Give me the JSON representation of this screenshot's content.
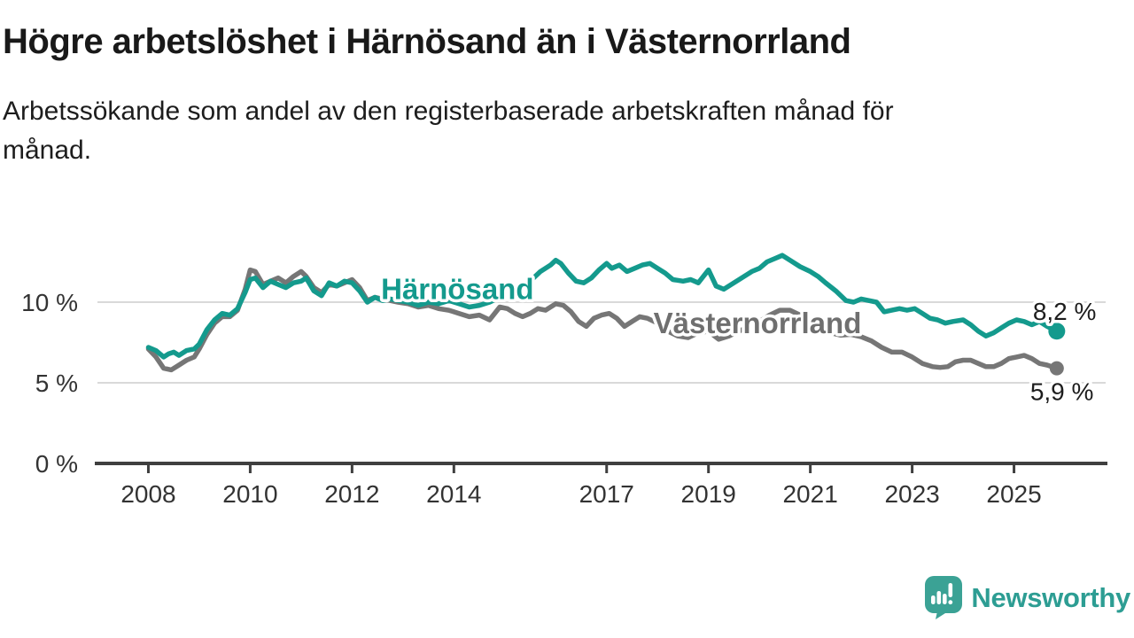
{
  "header": {
    "title": "Högre arbetslöshet i Härnösand än i Västernorrland",
    "subtitle": "Arbetssökande som andel av den registerbaserade arbetskraften månad för månad."
  },
  "footer": {
    "brand": "Newsworthy",
    "logo_icon": "bar-chart-speech-bubble-icon",
    "brand_color": "#2d9d93",
    "icon_color": "#3ba295"
  },
  "chart_data": {
    "type": "line",
    "title": "Högre arbetslöshet i Härnösand än i Västernorrland",
    "subtitle": "Arbetssökande som andel av den registerbaserade arbetskraften månad för månad.",
    "xlabel": "",
    "ylabel": "",
    "grid": "horizontal",
    "legend_position": "inline-labels",
    "x_axis": {
      "range": [
        2007.0,
        2026.8
      ],
      "ticks": [
        2008,
        2010,
        2012,
        2014,
        2017,
        2019,
        2021,
        2023,
        2025
      ],
      "tick_labels": [
        "2008",
        "2010",
        "2012",
        "2014",
        "2017",
        "2019",
        "2021",
        "2023",
        "2025"
      ],
      "axis_color": "#3f3f3f",
      "label_color": "#333333"
    },
    "y_axis": {
      "range": [
        0,
        13.6
      ],
      "ticks": [
        0,
        5,
        10
      ],
      "tick_labels": [
        "0 %",
        "5 %",
        "10 %"
      ],
      "gridlines": [
        5,
        10
      ],
      "grid_color": "#d9d9d9",
      "label_color": "#333333"
    },
    "series": [
      {
        "name": "Västernorrland",
        "color": "#767676",
        "label_color": "#6f6f6f",
        "end_label": "5,9 %",
        "end_value": 5.9,
        "name_label_anchor": {
          "x_year": 2017.92,
          "y_pct": 8.08
        },
        "points": [
          [
            2008.0,
            7.1
          ],
          [
            2008.15,
            6.6
          ],
          [
            2008.3,
            5.9
          ],
          [
            2008.45,
            5.8
          ],
          [
            2008.6,
            6.1
          ],
          [
            2008.75,
            6.4
          ],
          [
            2008.9,
            6.6
          ],
          [
            2009.0,
            7.1
          ],
          [
            2009.15,
            8.0
          ],
          [
            2009.3,
            8.7
          ],
          [
            2009.45,
            9.1
          ],
          [
            2009.6,
            9.1
          ],
          [
            2009.75,
            9.5
          ],
          [
            2009.9,
            10.8
          ],
          [
            2010.0,
            12.0
          ],
          [
            2010.1,
            11.9
          ],
          [
            2010.25,
            11.1
          ],
          [
            2010.4,
            11.3
          ],
          [
            2010.55,
            11.5
          ],
          [
            2010.7,
            11.2
          ],
          [
            2010.85,
            11.6
          ],
          [
            2011.0,
            11.9
          ],
          [
            2011.1,
            11.6
          ],
          [
            2011.25,
            10.9
          ],
          [
            2011.4,
            10.6
          ],
          [
            2011.55,
            11.1
          ],
          [
            2011.7,
            11.0
          ],
          [
            2011.85,
            11.2
          ],
          [
            2012.0,
            11.4
          ],
          [
            2012.15,
            10.9
          ],
          [
            2012.3,
            10.1
          ],
          [
            2012.45,
            10.3
          ],
          [
            2012.6,
            10.2
          ],
          [
            2012.75,
            10.1
          ],
          [
            2012.9,
            10.0
          ],
          [
            2013.1,
            9.9
          ],
          [
            2013.3,
            9.7
          ],
          [
            2013.5,
            9.8
          ],
          [
            2013.7,
            9.6
          ],
          [
            2013.9,
            9.5
          ],
          [
            2014.1,
            9.3
          ],
          [
            2014.3,
            9.1
          ],
          [
            2014.5,
            9.2
          ],
          [
            2014.7,
            8.9
          ],
          [
            2014.9,
            9.7
          ],
          [
            2015.05,
            9.6
          ],
          [
            2015.2,
            9.3
          ],
          [
            2015.35,
            9.1
          ],
          [
            2015.5,
            9.3
          ],
          [
            2015.65,
            9.6
          ],
          [
            2015.8,
            9.5
          ],
          [
            2016.0,
            9.9
          ],
          [
            2016.15,
            9.8
          ],
          [
            2016.3,
            9.4
          ],
          [
            2016.45,
            8.8
          ],
          [
            2016.6,
            8.5
          ],
          [
            2016.75,
            9.0
          ],
          [
            2016.9,
            9.2
          ],
          [
            2017.05,
            9.3
          ],
          [
            2017.2,
            9.0
          ],
          [
            2017.35,
            8.5
          ],
          [
            2017.5,
            8.8
          ],
          [
            2017.65,
            9.1
          ],
          [
            2017.8,
            9.0
          ],
          [
            2018.0,
            8.7
          ],
          [
            2018.2,
            8.2
          ],
          [
            2018.4,
            7.9
          ],
          [
            2018.6,
            7.8
          ],
          [
            2018.8,
            8.1
          ],
          [
            2019.0,
            8.2
          ],
          [
            2019.2,
            7.7
          ],
          [
            2019.4,
            7.9
          ],
          [
            2019.6,
            8.2
          ],
          [
            2019.8,
            8.5
          ],
          [
            2020.0,
            8.8
          ],
          [
            2020.2,
            9.2
          ],
          [
            2020.4,
            9.5
          ],
          [
            2020.6,
            9.5
          ],
          [
            2020.8,
            9.2
          ],
          [
            2021.0,
            8.9
          ],
          [
            2021.2,
            8.5
          ],
          [
            2021.4,
            8.1
          ],
          [
            2021.6,
            7.95
          ],
          [
            2021.8,
            8.0
          ],
          [
            2022.0,
            7.85
          ],
          [
            2022.2,
            7.6
          ],
          [
            2022.4,
            7.2
          ],
          [
            2022.6,
            6.9
          ],
          [
            2022.8,
            6.9
          ],
          [
            2023.0,
            6.6
          ],
          [
            2023.2,
            6.2
          ],
          [
            2023.4,
            6.0
          ],
          [
            2023.55,
            5.95
          ],
          [
            2023.7,
            6.0
          ],
          [
            2023.85,
            6.3
          ],
          [
            2024.0,
            6.4
          ],
          [
            2024.15,
            6.4
          ],
          [
            2024.3,
            6.2
          ],
          [
            2024.45,
            6.0
          ],
          [
            2024.6,
            6.0
          ],
          [
            2024.75,
            6.2
          ],
          [
            2024.9,
            6.5
          ],
          [
            2025.05,
            6.6
          ],
          [
            2025.2,
            6.7
          ],
          [
            2025.35,
            6.5
          ],
          [
            2025.5,
            6.2
          ],
          [
            2025.65,
            6.1
          ],
          [
            2025.84,
            5.9
          ]
        ]
      },
      {
        "name": "Härnösand",
        "color": "#149a8d",
        "label_color": "#149a8d",
        "end_label": "8,2 %",
        "end_value": 8.2,
        "name_label_anchor": {
          "x_year": 2012.57,
          "y_pct": 10.2
        },
        "points": [
          [
            2008.0,
            7.2
          ],
          [
            2008.15,
            7.0
          ],
          [
            2008.3,
            6.6
          ],
          [
            2008.4,
            6.8
          ],
          [
            2008.5,
            6.9
          ],
          [
            2008.6,
            6.7
          ],
          [
            2008.75,
            7.0
          ],
          [
            2008.9,
            7.1
          ],
          [
            2009.0,
            7.4
          ],
          [
            2009.15,
            8.3
          ],
          [
            2009.3,
            8.9
          ],
          [
            2009.45,
            9.3
          ],
          [
            2009.6,
            9.2
          ],
          [
            2009.75,
            9.6
          ],
          [
            2009.9,
            10.6
          ],
          [
            2010.0,
            11.4
          ],
          [
            2010.1,
            11.5
          ],
          [
            2010.25,
            10.9
          ],
          [
            2010.4,
            11.3
          ],
          [
            2010.55,
            11.1
          ],
          [
            2010.7,
            10.9
          ],
          [
            2010.85,
            11.2
          ],
          [
            2011.0,
            11.3
          ],
          [
            2011.1,
            11.5
          ],
          [
            2011.25,
            10.7
          ],
          [
            2011.4,
            10.4
          ],
          [
            2011.55,
            11.2
          ],
          [
            2011.7,
            11.0
          ],
          [
            2011.85,
            11.3
          ],
          [
            2012.0,
            11.2
          ],
          [
            2012.15,
            10.7
          ],
          [
            2012.3,
            10.0
          ],
          [
            2012.45,
            10.3
          ],
          [
            2012.6,
            10.1
          ],
          [
            2012.75,
            10.2
          ],
          [
            2012.9,
            10.1
          ],
          [
            2013.1,
            10.0
          ],
          [
            2013.3,
            9.8
          ],
          [
            2013.5,
            10.0
          ],
          [
            2013.7,
            9.9
          ],
          [
            2013.9,
            10.1
          ],
          [
            2014.1,
            9.9
          ],
          [
            2014.3,
            9.7
          ],
          [
            2014.5,
            9.8
          ],
          [
            2014.7,
            10.0
          ],
          [
            2014.9,
            10.3
          ],
          [
            2015.1,
            10.7
          ],
          [
            2015.3,
            11.0
          ],
          [
            2015.5,
            11.3
          ],
          [
            2015.7,
            11.9
          ],
          [
            2015.9,
            12.3
          ],
          [
            2016.0,
            12.6
          ],
          [
            2016.1,
            12.4
          ],
          [
            2016.25,
            11.8
          ],
          [
            2016.4,
            11.3
          ],
          [
            2016.55,
            11.2
          ],
          [
            2016.7,
            11.5
          ],
          [
            2016.85,
            12.0
          ],
          [
            2017.0,
            12.4
          ],
          [
            2017.1,
            12.1
          ],
          [
            2017.25,
            12.3
          ],
          [
            2017.4,
            11.9
          ],
          [
            2017.55,
            12.1
          ],
          [
            2017.7,
            12.3
          ],
          [
            2017.85,
            12.4
          ],
          [
            2018.0,
            12.1
          ],
          [
            2018.15,
            11.8
          ],
          [
            2018.3,
            11.4
          ],
          [
            2018.5,
            11.3
          ],
          [
            2018.65,
            11.4
          ],
          [
            2018.8,
            11.2
          ],
          [
            2019.0,
            12.0
          ],
          [
            2019.15,
            11.0
          ],
          [
            2019.3,
            10.8
          ],
          [
            2019.5,
            11.2
          ],
          [
            2019.7,
            11.6
          ],
          [
            2019.85,
            11.9
          ],
          [
            2020.0,
            12.1
          ],
          [
            2020.15,
            12.5
          ],
          [
            2020.3,
            12.7
          ],
          [
            2020.45,
            12.9
          ],
          [
            2020.6,
            12.6
          ],
          [
            2020.8,
            12.2
          ],
          [
            2021.0,
            11.9
          ],
          [
            2021.15,
            11.6
          ],
          [
            2021.3,
            11.2
          ],
          [
            2021.5,
            10.7
          ],
          [
            2021.7,
            10.1
          ],
          [
            2021.85,
            10.0
          ],
          [
            2022.0,
            10.2
          ],
          [
            2022.15,
            10.1
          ],
          [
            2022.3,
            10.0
          ],
          [
            2022.45,
            9.4
          ],
          [
            2022.6,
            9.5
          ],
          [
            2022.75,
            9.6
          ],
          [
            2022.9,
            9.5
          ],
          [
            2023.05,
            9.6
          ],
          [
            2023.2,
            9.3
          ],
          [
            2023.35,
            9.0
          ],
          [
            2023.5,
            8.9
          ],
          [
            2023.65,
            8.7
          ],
          [
            2023.8,
            8.8
          ],
          [
            2024.0,
            8.9
          ],
          [
            2024.15,
            8.6
          ],
          [
            2024.3,
            8.2
          ],
          [
            2024.45,
            7.9
          ],
          [
            2024.6,
            8.1
          ],
          [
            2024.75,
            8.4
          ],
          [
            2024.9,
            8.7
          ],
          [
            2025.05,
            8.9
          ],
          [
            2025.2,
            8.8
          ],
          [
            2025.35,
            8.6
          ],
          [
            2025.5,
            8.8
          ],
          [
            2025.65,
            8.5
          ],
          [
            2025.84,
            8.2
          ]
        ]
      }
    ]
  }
}
